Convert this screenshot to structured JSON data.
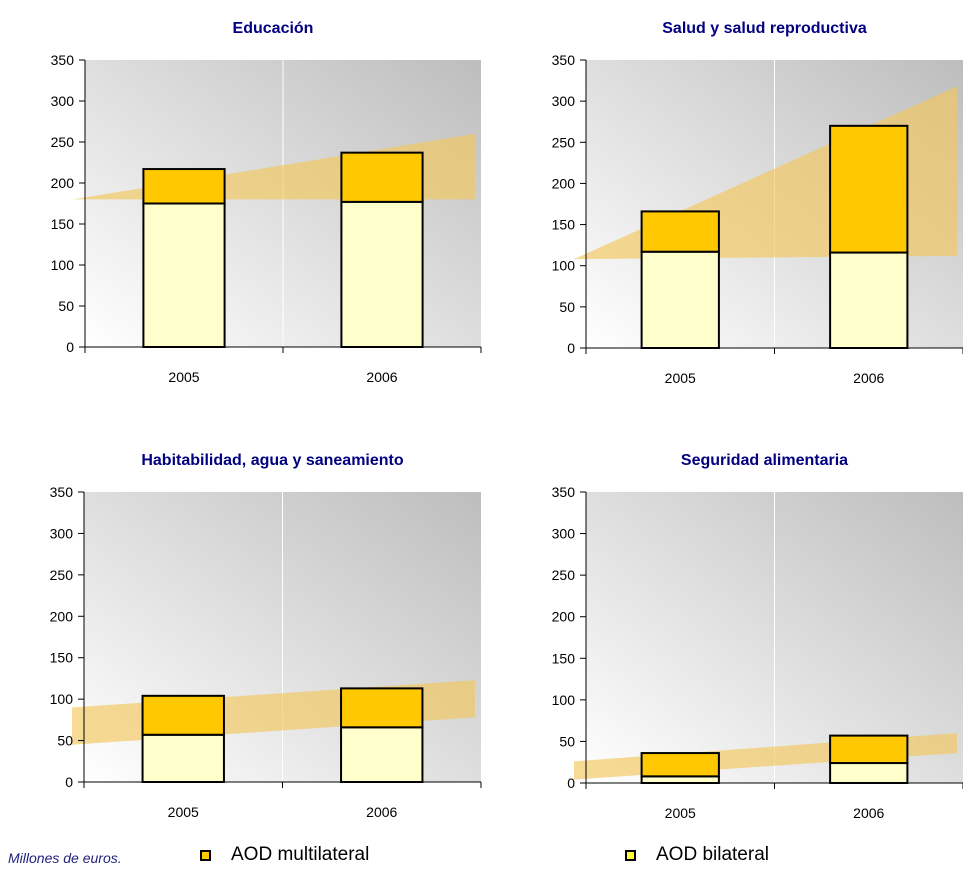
{
  "colors": {
    "multilateral": "#ffc800",
    "bilateral": "#ffffcc",
    "bilateral_legend": "#ffff33",
    "trend_fill": "#f2c75c",
    "title": "#000080"
  },
  "footnote": "Millones de euros.",
  "legend": [
    {
      "label": "AOD multilateral",
      "color_key": "multilateral"
    },
    {
      "label": "AOD bilateral",
      "color_key": "bilateral_legend"
    }
  ],
  "chart_data": [
    {
      "type": "bar",
      "stacked": true,
      "title": "Educación",
      "categories": [
        "2005",
        "2006"
      ],
      "series": [
        {
          "name": "AOD bilateral",
          "values": [
            175,
            177
          ]
        },
        {
          "name": "AOD multilateral",
          "values": [
            42,
            60
          ]
        }
      ],
      "totals": [
        217,
        237
      ],
      "trend": {
        "start": [
          180,
          180
        ],
        "end": [
          180,
          260
        ]
      },
      "ylim": [
        0,
        350
      ],
      "yticks": [
        0,
        50,
        100,
        150,
        200,
        250,
        300,
        350
      ]
    },
    {
      "type": "bar",
      "stacked": true,
      "title": "Salud y salud reproductiva",
      "categories": [
        "2005",
        "2006"
      ],
      "series": [
        {
          "name": "AOD bilateral",
          "values": [
            117,
            116
          ]
        },
        {
          "name": "AOD multilateral",
          "values": [
            49,
            154
          ]
        }
      ],
      "totals": [
        166,
        270
      ],
      "trend": {
        "start": [
          108,
          108
        ],
        "end": [
          112,
          318
        ]
      },
      "ylim": [
        0,
        350
      ],
      "yticks": [
        0,
        50,
        100,
        150,
        200,
        250,
        300,
        350
      ]
    },
    {
      "type": "bar",
      "stacked": true,
      "title": "Habitabilidad, agua y saneamiento",
      "categories": [
        "2005",
        "2006"
      ],
      "series": [
        {
          "name": "AOD bilateral",
          "values": [
            57,
            66
          ]
        },
        {
          "name": "AOD multilateral",
          "values": [
            47,
            47
          ]
        }
      ],
      "totals": [
        104,
        113
      ],
      "trend": {
        "start": [
          45,
          90
        ],
        "end": [
          78,
          123
        ]
      },
      "ylim": [
        0,
        350
      ],
      "yticks": [
        0,
        50,
        100,
        150,
        200,
        250,
        300,
        350
      ]
    },
    {
      "type": "bar",
      "stacked": true,
      "title": "Seguridad alimentaria",
      "categories": [
        "2005",
        "2006"
      ],
      "series": [
        {
          "name": "AOD bilateral",
          "values": [
            8,
            24
          ]
        },
        {
          "name": "AOD multilateral",
          "values": [
            28,
            33
          ]
        }
      ],
      "totals": [
        36,
        57
      ],
      "trend": {
        "start": [
          4,
          26
        ],
        "end": [
          36,
          60
        ]
      },
      "ylim": [
        0,
        350
      ],
      "yticks": [
        0,
        50,
        100,
        150,
        200,
        250,
        300,
        350
      ]
    }
  ]
}
